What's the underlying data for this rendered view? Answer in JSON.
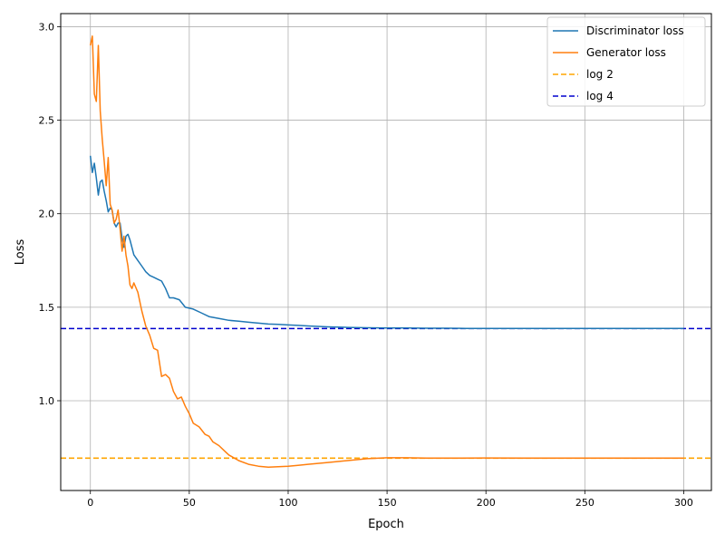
{
  "chart_data": {
    "type": "line",
    "title": "",
    "xlabel": "Epoch",
    "ylabel": "Loss",
    "xlim": [
      -15,
      314
    ],
    "ylim": [
      0.52,
      3.07
    ],
    "x_ticks": [
      0,
      50,
      100,
      150,
      200,
      250,
      300
    ],
    "y_ticks": [
      1.0,
      1.5,
      2.0,
      2.5,
      3.0
    ],
    "x_tick_labels": [
      "0",
      "50",
      "100",
      "150",
      "200",
      "250",
      "300"
    ],
    "y_tick_labels": [
      "1.0",
      "1.5",
      "2.0",
      "2.5",
      "3.0"
    ],
    "grid": true,
    "legend_position": "top-right",
    "series": [
      {
        "name": "Discriminator loss",
        "color": "#1f77b4",
        "style": "solid",
        "x": [
          0,
          1,
          2,
          3,
          4,
          5,
          6,
          7,
          8,
          9,
          10,
          11,
          12,
          13,
          14,
          15,
          16,
          17,
          18,
          19,
          20,
          22,
          24,
          26,
          28,
          30,
          32,
          34,
          36,
          38,
          40,
          42,
          45,
          48,
          52,
          56,
          60,
          65,
          70,
          75,
          80,
          85,
          90,
          95,
          100,
          105,
          110,
          120,
          130,
          140,
          150,
          160,
          170,
          180,
          190,
          200,
          220,
          240,
          260,
          280,
          300
        ],
        "y": [
          2.31,
          2.22,
          2.27,
          2.19,
          2.1,
          2.17,
          2.18,
          2.12,
          2.07,
          2.01,
          2.03,
          2.02,
          1.95,
          1.93,
          1.95,
          1.95,
          1.87,
          1.82,
          1.88,
          1.89,
          1.86,
          1.78,
          1.75,
          1.72,
          1.69,
          1.67,
          1.66,
          1.65,
          1.64,
          1.6,
          1.55,
          1.55,
          1.54,
          1.5,
          1.49,
          1.47,
          1.45,
          1.44,
          1.43,
          1.425,
          1.42,
          1.415,
          1.41,
          1.408,
          1.405,
          1.403,
          1.4,
          1.395,
          1.392,
          1.39,
          1.389,
          1.389,
          1.388,
          1.388,
          1.387,
          1.387,
          1.387,
          1.387,
          1.387,
          1.387,
          1.387
        ]
      },
      {
        "name": "Generator loss",
        "color": "#ff7f0e",
        "style": "solid",
        "x": [
          0,
          1,
          2,
          3,
          4,
          5,
          6,
          7,
          8,
          9,
          10,
          11,
          12,
          13,
          14,
          15,
          16,
          17,
          18,
          19,
          20,
          21,
          22,
          24,
          26,
          28,
          30,
          32,
          34,
          36,
          38,
          40,
          42,
          44,
          46,
          48,
          50,
          52,
          55,
          58,
          60,
          62,
          65,
          68,
          70,
          75,
          80,
          85,
          90,
          95,
          100,
          105,
          110,
          120,
          130,
          140,
          150,
          160,
          170,
          180,
          200,
          220,
          240,
          260,
          280,
          300
        ],
        "y": [
          2.9,
          2.95,
          2.64,
          2.6,
          2.9,
          2.55,
          2.4,
          2.28,
          2.15,
          2.3,
          2.05,
          2.02,
          1.95,
          1.97,
          2.02,
          1.92,
          1.8,
          1.88,
          1.78,
          1.72,
          1.62,
          1.6,
          1.63,
          1.58,
          1.48,
          1.4,
          1.35,
          1.28,
          1.27,
          1.13,
          1.14,
          1.12,
          1.05,
          1.01,
          1.02,
          0.97,
          0.93,
          0.88,
          0.86,
          0.82,
          0.81,
          0.78,
          0.76,
          0.73,
          0.71,
          0.68,
          0.66,
          0.65,
          0.645,
          0.647,
          0.65,
          0.655,
          0.66,
          0.67,
          0.68,
          0.69,
          0.695,
          0.695,
          0.693,
          0.693,
          0.694,
          0.693,
          0.693,
          0.693,
          0.693,
          0.693
        ]
      },
      {
        "name": "log 2",
        "label_main": "log",
        "label_arg": "2",
        "color": "#ffa500",
        "style": "dashed",
        "y_const": 0.693
      },
      {
        "name": "log 4",
        "label_main": "log",
        "label_arg": "4",
        "color": "#0000cd",
        "style": "dashed",
        "y_const": 1.386
      }
    ]
  }
}
